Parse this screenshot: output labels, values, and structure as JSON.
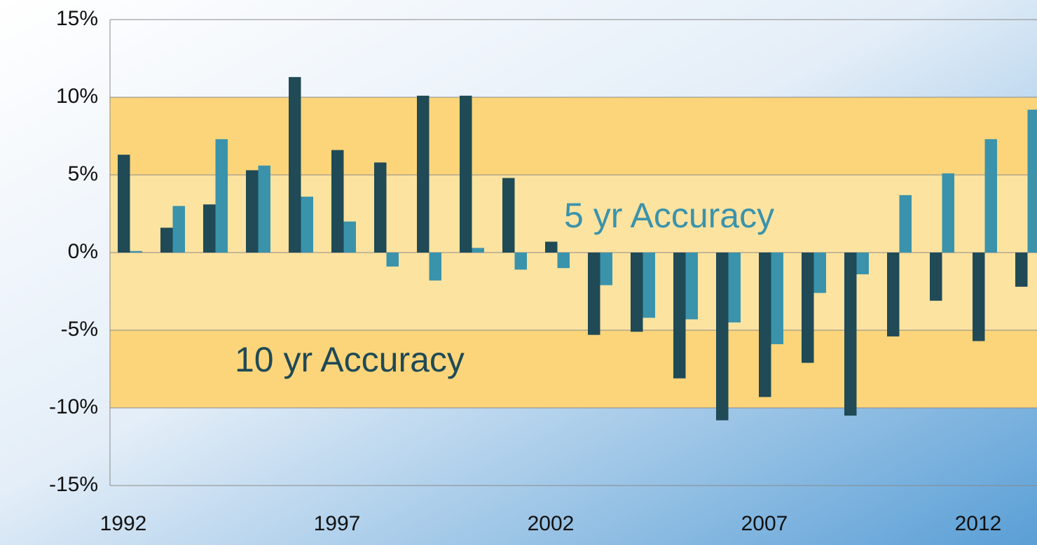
{
  "chart_data": {
    "type": "bar",
    "categories": [
      "1992",
      null,
      null,
      null,
      null,
      "1997",
      null,
      null,
      null,
      null,
      "2002",
      null,
      null,
      null,
      null,
      "2007",
      null,
      null,
      null,
      null,
      "2012",
      null
    ],
    "series": [
      {
        "name": "10 yr Accuracy",
        "color": "#1f4a56",
        "values": [
          6.3,
          1.6,
          3.1,
          5.3,
          11.3,
          6.6,
          5.8,
          10.1,
          10.1,
          4.8,
          0.7,
          -5.3,
          -5.1,
          -8.1,
          -10.8,
          -9.3,
          -7.1,
          -10.5,
          -5.4,
          -3.1,
          -5.7,
          -2.2
        ]
      },
      {
        "name": "5 yr Accuracy",
        "color": "#3a93ab",
        "values": [
          0.1,
          3.0,
          7.3,
          5.6,
          3.6,
          2.0,
          -0.9,
          -1.8,
          0.3,
          -1.1,
          -1.0,
          -2.1,
          -4.2,
          -4.3,
          -4.5,
          -5.9,
          -2.6,
          -1.4,
          3.7,
          5.1,
          7.3,
          9.2
        ]
      }
    ],
    "ylim": [
      -15,
      15
    ],
    "yticks": [
      {
        "value": -15,
        "label": "-15%"
      },
      {
        "value": -10,
        "label": "-10%"
      },
      {
        "value": -5,
        "label": "-5%"
      },
      {
        "value": 0,
        "label": "0%"
      },
      {
        "value": 5,
        "label": "5%"
      },
      {
        "value": 10,
        "label": "10%"
      },
      {
        "value": 15,
        "label": "15%"
      }
    ],
    "grid": true,
    "bands": [
      {
        "from": -10,
        "to": 10,
        "color": "#fcd57a"
      },
      {
        "from": -5,
        "to": 5,
        "color": "#fde3a0"
      }
    ]
  }
}
